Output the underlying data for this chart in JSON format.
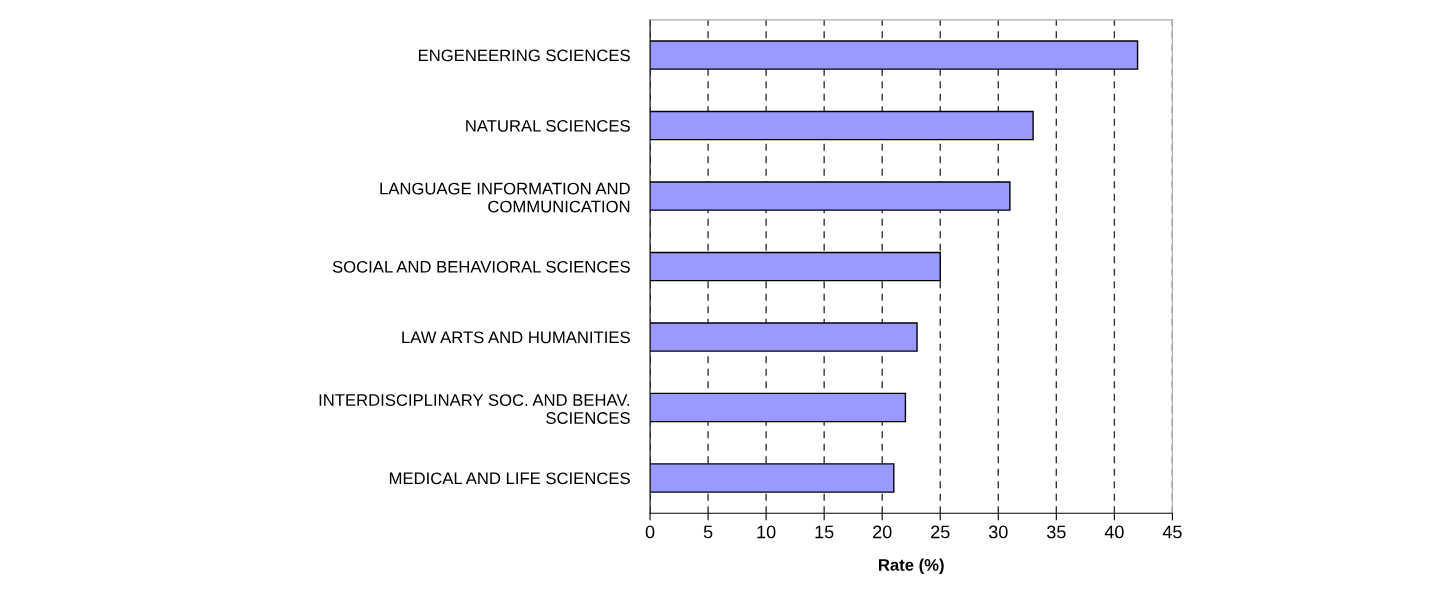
{
  "chart_data": {
    "type": "bar",
    "orientation": "horizontal",
    "xlabel": "Rate (%)",
    "categories": [
      "ENGENEERING SCIENCES",
      "NATURAL SCIENCES",
      "LANGUAGE INFORMATION AND\nCOMMUNICATION",
      "SOCIAL AND BEHAVIORAL SCIENCES",
      "LAW ARTS AND HUMANITIES",
      "INTERDISCIPLINARY SOC. AND BEHAV.\nSCIENCES",
      "MEDICAL AND LIFE SCIENCES"
    ],
    "values": [
      42,
      33,
      31,
      25,
      23,
      22,
      21
    ],
    "color": "#9999ff",
    "xlim": [
      0,
      45
    ],
    "xticks": [
      0,
      5,
      10,
      15,
      20,
      25,
      30,
      35,
      40,
      45
    ],
    "grid": "x",
    "line_style": "dashed"
  }
}
